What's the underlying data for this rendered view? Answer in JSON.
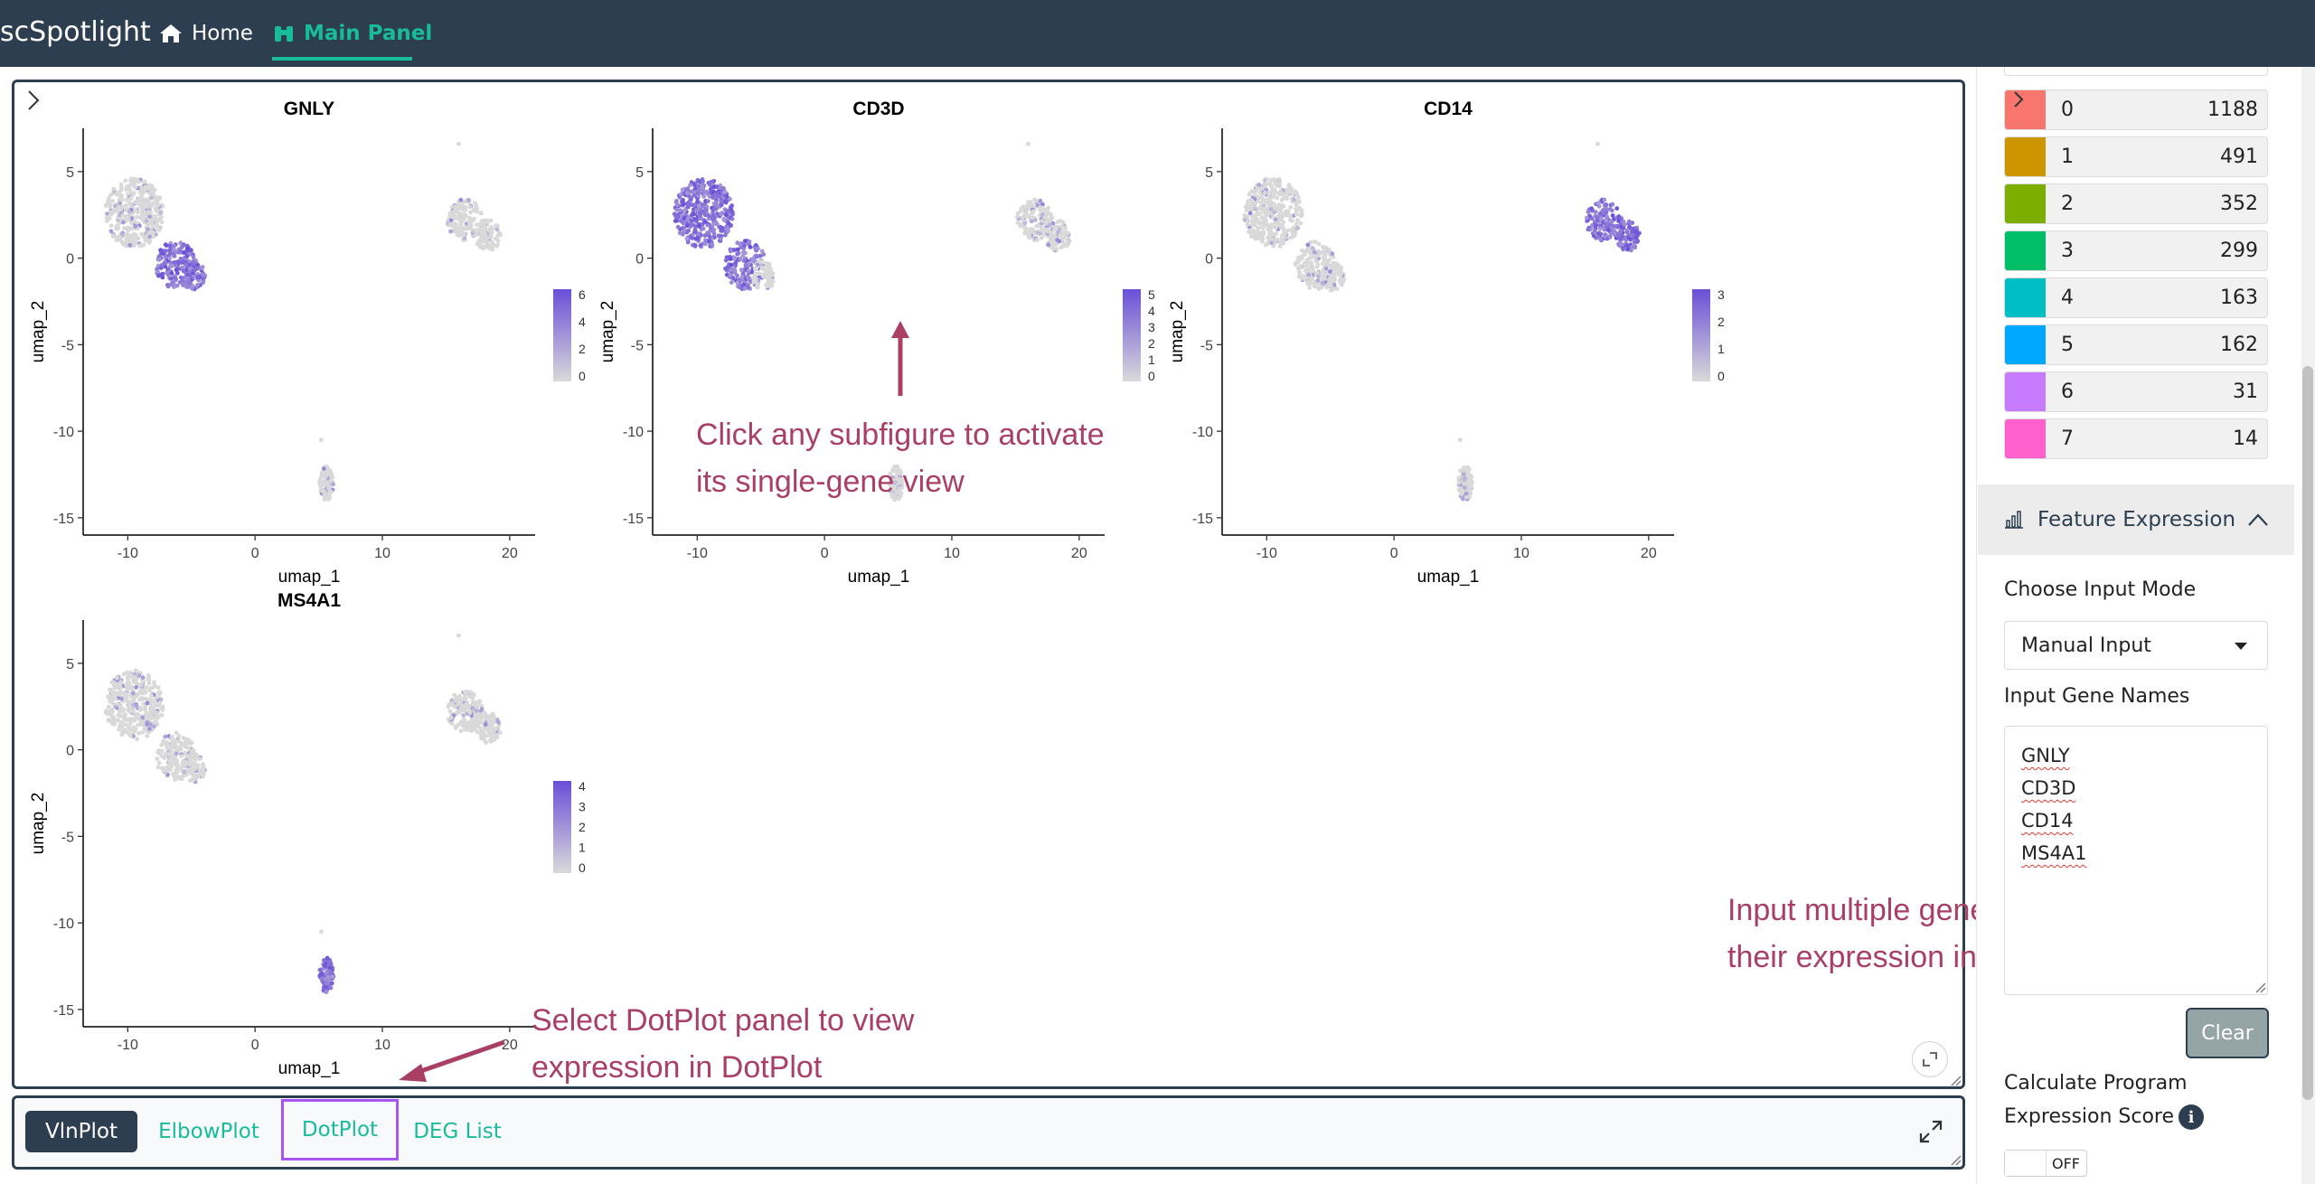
{
  "navbar": {
    "brand": "scSpotlight",
    "home_label": "Home",
    "main_panel_label": "Main Panel"
  },
  "plots": [
    {
      "title": "GNLY",
      "xlabel": "umap_1",
      "ylabel": "umap_2",
      "x_ticks": [
        "-10",
        "0",
        "10",
        "20"
      ],
      "y_ticks": [
        "5",
        "0",
        "-5",
        "-10",
        "-15"
      ],
      "legend_ticks": [
        "6",
        "4",
        "2",
        "0"
      ]
    },
    {
      "title": "CD3D",
      "xlabel": "umap_1",
      "ylabel": "umap_2",
      "x_ticks": [
        "-10",
        "0",
        "10",
        "20"
      ],
      "y_ticks": [
        "5",
        "0",
        "-5",
        "-10",
        "-15"
      ],
      "legend_ticks": [
        "5",
        "4",
        "3",
        "2",
        "1",
        "0"
      ]
    },
    {
      "title": "CD14",
      "xlabel": "umap_1",
      "ylabel": "umap_2",
      "x_ticks": [
        "-10",
        "0",
        "10",
        "20"
      ],
      "y_ticks": [
        "5",
        "0",
        "-5",
        "-10",
        "-15"
      ],
      "legend_ticks": [
        "3",
        "2",
        "1",
        "0"
      ]
    },
    {
      "title": "MS4A1",
      "xlabel": "umap_1",
      "ylabel": "umap_2",
      "x_ticks": [
        "-10",
        "0",
        "10",
        "20"
      ],
      "y_ticks": [
        "5",
        "0",
        "-5",
        "-10",
        "-15"
      ],
      "legend_ticks": [
        "4",
        "3",
        "2",
        "1",
        "0"
      ]
    }
  ],
  "annotations": {
    "subfigure_line1": "Click any subfigure to activate",
    "subfigure_line2": "its single-gene view",
    "dotplot_line1": "Select DotPlot panel to view",
    "dotplot_line2": "expression in DotPlot",
    "genes_line1": "Input multiple genes to visualize",
    "genes_line2": "their expression in FeaturePlot",
    "color": "#a93f63"
  },
  "tabs": {
    "vlnplot": "VlnPlot",
    "elbowplot": "ElbowPlot",
    "dotplot": "DotPlot",
    "deglist": "DEG List"
  },
  "clusters": [
    {
      "id": "0",
      "count": "1188",
      "color": "#f8766d"
    },
    {
      "id": "1",
      "count": "491",
      "color": "#cd9600"
    },
    {
      "id": "2",
      "count": "352",
      "color": "#7cae00"
    },
    {
      "id": "3",
      "count": "299",
      "color": "#00be67"
    },
    {
      "id": "4",
      "count": "163",
      "color": "#00bfc4"
    },
    {
      "id": "5",
      "count": "162",
      "color": "#00a9ff"
    },
    {
      "id": "6",
      "count": "31",
      "color": "#c77cff"
    },
    {
      "id": "7",
      "count": "14",
      "color": "#ff61cc"
    }
  ],
  "feature_expression": {
    "header": "Feature Expression",
    "input_mode_label": "Choose Input Mode",
    "input_mode_value": "Manual Input",
    "gene_names_label": "Input Gene Names",
    "genes": [
      "GNLY",
      "CD3D",
      "CD14",
      "MS4A1"
    ],
    "clear_label": "Clear",
    "program_score_line1": "Calculate Program",
    "program_score_line2": "Expression Score",
    "toggle_label": "OFF"
  },
  "colors": {
    "navbar": "#2c3e50",
    "accent": "#18bc9c",
    "high_expression": "#6a4fd8",
    "low_expression": "#d9d9d9"
  }
}
